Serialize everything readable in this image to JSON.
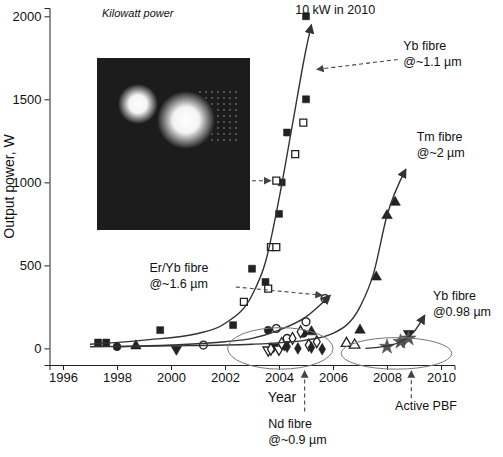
{
  "chart_data": {
    "type": "scatter",
    "title": "Kilowatt power",
    "xlabel": "Year",
    "ylabel": "Output power, W",
    "xlim": [
      1995.5,
      2010.5
    ],
    "ylim": [
      -100,
      2050
    ],
    "xticks": [
      1996,
      1998,
      2000,
      2002,
      2004,
      2006,
      2008,
      2010
    ],
    "yticks": [
      0,
      500,
      1000,
      1500,
      2000
    ],
    "grid": false,
    "series": [
      {
        "type": "scatter",
        "marker": "square",
        "color": "#222222",
        "x": [
          1997.3,
          1997.6,
          1999.6,
          2002.3,
          2003.0,
          2003.5,
          2004.0,
          2004.1,
          2004.3,
          2005.0,
          2005.0
        ],
        "values": [
          35,
          35,
          110,
          140,
          480,
          400,
          810,
          1000,
          1300,
          1500,
          2000
        ]
      },
      {
        "type": "scatter",
        "marker": "square-open",
        "color": "#222222",
        "x": [
          2002.7,
          2003.6,
          2003.7,
          2003.9,
          2003.9,
          2004.6,
          2004.9
        ],
        "values": [
          280,
          360,
          610,
          610,
          1010,
          1170,
          1360
        ]
      },
      {
        "type": "scatter",
        "marker": "circle",
        "color": "#222222",
        "x": [
          1998.0,
          2003.6,
          2004.9
        ],
        "values": [
          10,
          110,
          90
        ]
      },
      {
        "type": "scatter",
        "marker": "circle-open",
        "color": "#222222",
        "x": [
          2001.2,
          2003.9,
          2004.3,
          2005.0,
          2005.7
        ],
        "values": [
          20,
          120,
          60,
          160,
          300
        ]
      },
      {
        "type": "scatter",
        "marker": "triangle-down",
        "color": "#222222",
        "x": [
          2000.2,
          2003.8,
          2004.2,
          2008.6,
          2008.8
        ],
        "values": [
          -5,
          10,
          20,
          40,
          90
        ]
      },
      {
        "type": "scatter",
        "marker": "triangle-down-open",
        "color": "#222222",
        "x": [
          2003.6,
          2004.0
        ],
        "values": [
          -10,
          -5
        ]
      },
      {
        "type": "scatter",
        "marker": "triangle-up",
        "color": "#222222",
        "x": [
          1998.7,
          2005.2,
          2007.0,
          2007.6,
          2008.0,
          2008.3
        ],
        "values": [
          15,
          100,
          110,
          430,
          800,
          880
        ]
      },
      {
        "type": "scatter",
        "marker": "triangle-up-open",
        "color": "#222222",
        "x": [
          2006.5,
          2006.8
        ],
        "values": [
          30,
          20
        ]
      },
      {
        "type": "scatter",
        "marker": "diamond-open",
        "color": "#222222",
        "x": [
          2003.7,
          2004.1,
          2004.5,
          2004.8,
          2005.1,
          2005.4
        ],
        "values": [
          -5,
          30,
          60,
          100,
          20,
          40
        ]
      },
      {
        "type": "scatter",
        "marker": "diamond",
        "color": "#222222",
        "x": [
          2004.3,
          2004.7,
          2005.2,
          2005.6
        ],
        "values": [
          10,
          0,
          5,
          -5
        ]
      },
      {
        "type": "scatter",
        "marker": "star",
        "color": "#555555",
        "x": [
          2008.0,
          2008.5,
          2008.8
        ],
        "values": [
          10,
          40,
          60
        ]
      },
      {
        "type": "line",
        "line_style": "solid",
        "marker": "arrow",
        "color": "#333333",
        "x": [
          1997,
          1999,
          2001,
          2002,
          2003,
          2003.5,
          2004,
          2004.5,
          2005,
          2005.2
        ],
        "values": [
          25,
          50,
          90,
          150,
          320,
          520,
          900,
          1350,
          1800,
          1950
        ]
      },
      {
        "type": "line",
        "line_style": "solid",
        "marker": "arrow",
        "color": "#333333",
        "x": [
          1998,
          2000,
          2002,
          2003,
          2004,
          2005,
          2005.9
        ],
        "values": [
          10,
          20,
          40,
          60,
          110,
          190,
          320
        ]
      },
      {
        "type": "line",
        "line_style": "solid",
        "marker": "arrow",
        "color": "#333333",
        "x": [
          1997,
          2000,
          2003,
          2005,
          2006,
          2007,
          2007.5,
          2008,
          2008.7
        ],
        "values": [
          10,
          15,
          25,
          50,
          90,
          250,
          450,
          800,
          1080
        ]
      },
      {
        "type": "line",
        "line_style": "solid",
        "marker": "arrow",
        "color": "#333333",
        "x": [
          2007.2,
          2008,
          2008.5,
          2009,
          2009.4
        ],
        "values": [
          0,
          15,
          40,
          100,
          200
        ]
      }
    ],
    "annotations": [
      {
        "lines": [
          "10 kW in 2010"
        ],
        "x": 2004.6,
        "y": 2015
      },
      {
        "lines": [
          "Yb fibre",
          "@~1.1 µm"
        ],
        "x": 2008.6,
        "y": 1800,
        "arrow": [
          2008.4,
          1740,
          2005.4,
          1680
        ]
      },
      {
        "lines": [
          "Tm fibre",
          "@~2 µm"
        ],
        "x": 2009.1,
        "y": 1250
      },
      {
        "lines": [
          "Er/Yb fibre",
          "@~1.6 µm"
        ],
        "x": 1999.2,
        "y": 460,
        "arrow": [
          2002.4,
          370,
          2005.6,
          320
        ]
      },
      {
        "lines": [
          "Yb fibre",
          "@0.98 µm"
        ],
        "x": 2009.7,
        "y": 290
      },
      {
        "lines": [
          "Nd fibre",
          "@~0.9 µm"
        ],
        "x": 2003.6,
        "y": -480,
        "arrow": [
          2004.95,
          -380,
          2004.95,
          -135
        ],
        "ellipse": [
          2002.1,
          2006.0,
          -125,
          125
        ]
      },
      {
        "lines": [
          "Active PBF"
        ],
        "x": 2008.3,
        "y": -371,
        "arrow": [
          2008.9,
          -300,
          2008.9,
          -135
        ],
        "ellipse": [
          2006.3,
          2010.4,
          -125,
          65
        ]
      },
      {
        "arrow": [
          2003.0,
          1010,
          2003.7,
          1010
        ]
      }
    ]
  }
}
